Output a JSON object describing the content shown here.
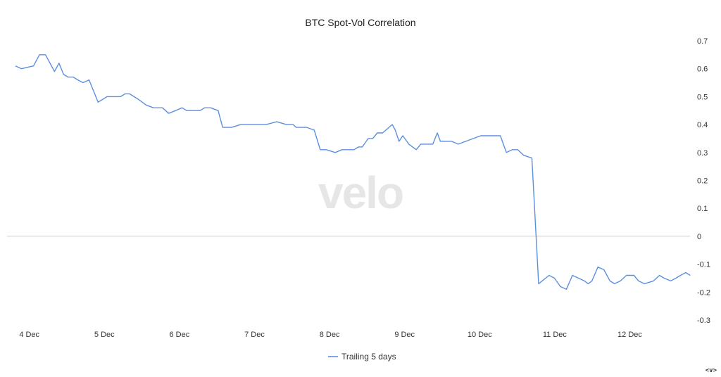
{
  "watermark": "velo",
  "corner_glyph": "<v>",
  "chart_data": {
    "type": "line",
    "title": "BTC Spot-Vol Correlation",
    "xlabel": "",
    "ylabel": "",
    "ylim": [
      -0.3,
      0.7
    ],
    "y_ticks": [
      "0.7",
      "0.6",
      "0.5",
      "0.4",
      "0.3",
      "0.2",
      "0.1",
      "0",
      "-0.1",
      "-0.2",
      "-0.3"
    ],
    "y_tick_values": [
      0.7,
      0.6,
      0.5,
      0.4,
      0.3,
      0.2,
      0.1,
      0,
      -0.1,
      -0.2,
      -0.3
    ],
    "x_ticks": [
      "4 Dec",
      "5 Dec",
      "6 Dec",
      "7 Dec",
      "8 Dec",
      "9 Dec",
      "10 Dec",
      "11 Dec",
      "12 Dec"
    ],
    "x_tick_days": [
      4,
      5,
      6,
      7,
      8,
      9,
      10,
      11,
      12
    ],
    "legend": {
      "position": "bottom-center"
    },
    "grid": "zero-line only",
    "color": "#5b8fe0",
    "series": [
      {
        "name": "Trailing 5 days",
        "x": [
          3.82,
          3.9,
          4.06,
          4.14,
          4.22,
          4.34,
          4.4,
          4.46,
          4.52,
          4.59,
          4.65,
          4.72,
          4.8,
          4.92,
          5.04,
          5.12,
          5.22,
          5.28,
          5.34,
          5.46,
          5.56,
          5.66,
          5.78,
          5.86,
          6.04,
          6.1,
          6.16,
          6.28,
          6.34,
          6.42,
          6.52,
          6.58,
          6.7,
          6.82,
          6.86,
          6.94,
          7.03,
          7.16,
          7.3,
          7.43,
          7.52,
          7.56,
          7.61,
          7.65,
          7.7,
          7.8,
          7.88,
          7.96,
          8.08,
          8.17,
          8.27,
          8.33,
          8.39,
          8.44,
          8.52,
          8.58,
          8.64,
          8.71,
          8.84,
          8.88,
          8.93,
          8.98,
          9.06,
          9.11,
          9.16,
          9.22,
          9.28,
          9.38,
          9.44,
          9.48,
          9.57,
          9.63,
          9.72,
          9.82,
          9.92,
          10.02,
          10.12,
          10.2,
          10.28,
          10.36,
          10.44,
          10.51,
          10.59,
          10.7,
          10.79,
          10.93,
          11.0,
          11.08,
          11.16,
          11.24,
          11.4,
          11.45,
          11.5,
          11.58,
          11.66,
          11.74,
          11.8,
          11.88,
          11.96,
          12.06,
          12.12,
          12.2,
          12.32,
          12.4,
          12.46,
          12.55,
          12.62,
          12.68,
          12.75,
          12.81
        ],
        "values": [
          0.61,
          0.6,
          0.61,
          0.65,
          0.65,
          0.59,
          0.62,
          0.58,
          0.57,
          0.57,
          0.56,
          0.55,
          0.56,
          0.48,
          0.5,
          0.5,
          0.5,
          0.51,
          0.51,
          0.49,
          0.47,
          0.46,
          0.46,
          0.44,
          0.46,
          0.45,
          0.45,
          0.45,
          0.46,
          0.46,
          0.45,
          0.39,
          0.39,
          0.4,
          0.4,
          0.4,
          0.4,
          0.4,
          0.41,
          0.4,
          0.4,
          0.39,
          0.39,
          0.39,
          0.39,
          0.38,
          0.31,
          0.31,
          0.3,
          0.31,
          0.31,
          0.31,
          0.32,
          0.32,
          0.35,
          0.35,
          0.37,
          0.37,
          0.4,
          0.38,
          0.34,
          0.36,
          0.33,
          0.32,
          0.31,
          0.33,
          0.33,
          0.33,
          0.37,
          0.34,
          0.34,
          0.34,
          0.33,
          0.34,
          0.35,
          0.36,
          0.36,
          0.36,
          0.36,
          0.3,
          0.31,
          0.31,
          0.29,
          0.28,
          -0.17,
          -0.14,
          -0.15,
          -0.18,
          -0.19,
          -0.14,
          -0.16,
          -0.17,
          -0.16,
          -0.11,
          -0.12,
          -0.16,
          -0.17,
          -0.16,
          -0.14,
          -0.14,
          -0.16,
          -0.17,
          -0.16,
          -0.14,
          -0.15,
          -0.16,
          -0.15,
          -0.14,
          -0.13,
          -0.14
        ]
      }
    ]
  }
}
